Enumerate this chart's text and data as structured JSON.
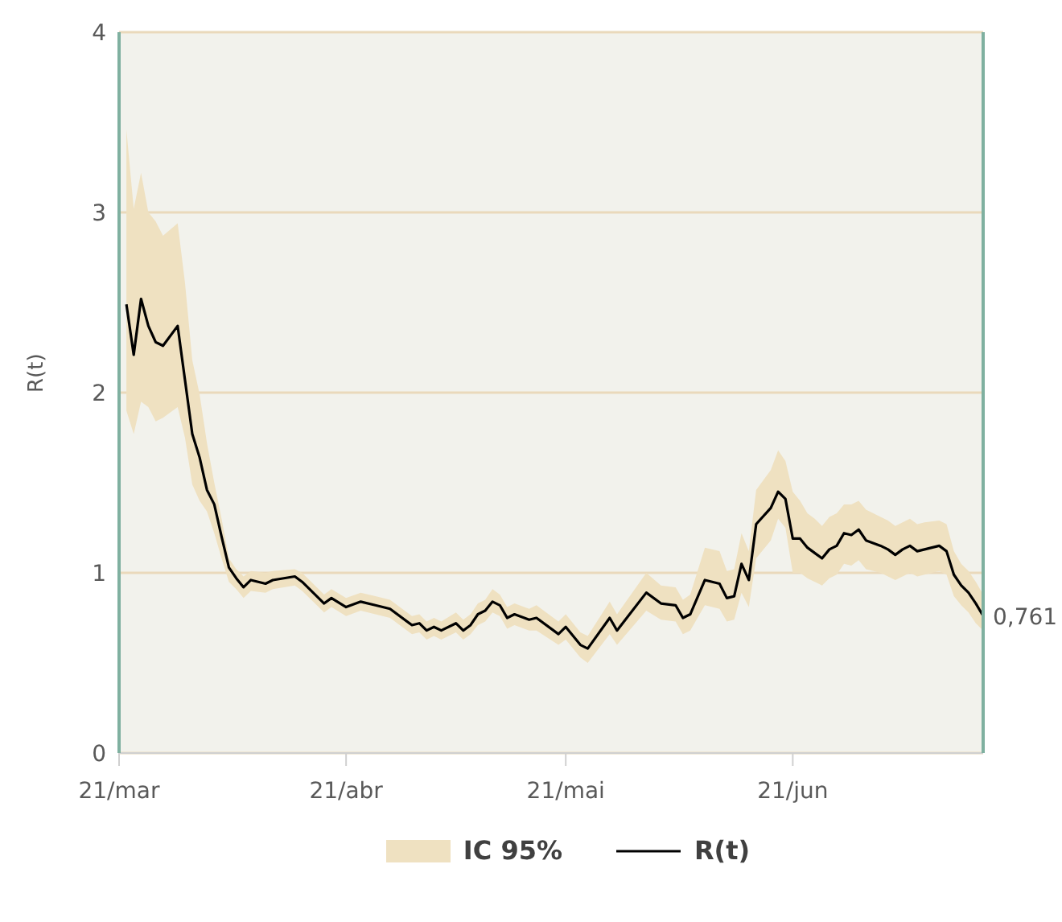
{
  "chart_data": {
    "type": "line",
    "ylabel": "R(t)",
    "x": [
      "--03-22",
      "--03-23",
      "--03-24",
      "--03-25",
      "--03-26",
      "--03-27",
      "--03-29",
      "--03-30",
      "--03-31",
      "--04-01",
      "--04-02",
      "--04-03",
      "--04-04",
      "--04-05",
      "--04-06",
      "--04-07",
      "--04-08",
      "--04-10",
      "--04-11",
      "--04-14",
      "--04-15",
      "--04-17",
      "--04-18",
      "--04-19",
      "--04-21",
      "--04-23",
      "--04-25",
      "--04-27",
      "--04-30",
      "--05-01",
      "--05-02",
      "--05-03",
      "--05-04",
      "--05-06",
      "--05-07",
      "--05-08",
      "--05-09",
      "--05-10",
      "--05-11",
      "--05-12",
      "--05-13",
      "--05-14",
      "--05-16",
      "--05-17",
      "--05-20",
      "--05-21",
      "--05-23",
      "--05-24",
      "--05-27",
      "--05-28",
      "--06-01",
      "--06-03",
      "--06-05",
      "--06-06",
      "--06-07",
      "--06-09",
      "--06-11",
      "--06-12",
      "--06-13",
      "--06-14",
      "--06-15",
      "--06-16",
      "--06-18",
      "--06-19",
      "--06-20",
      "--06-21",
      "--06-22",
      "--06-23",
      "--06-24",
      "--06-25",
      "--06-26",
      "--06-27",
      "--06-28",
      "--06-29",
      "--06-30",
      "--07-01",
      "--07-03",
      "--07-04",
      "--07-05",
      "--07-06",
      "--07-07",
      "--07-08",
      "--07-09",
      "--07-11",
      "--07-12",
      "--07-13",
      "--07-14",
      "--07-15",
      "--07-16",
      "--07-17"
    ],
    "series": [
      {
        "name": "R(t)",
        "color": "#000000",
        "lower": [
          1.9,
          1.77,
          1.95,
          1.92,
          1.84,
          1.86,
          1.92,
          1.75,
          1.49,
          1.4,
          1.34,
          1.22,
          1.08,
          0.95,
          0.91,
          0.86,
          0.9,
          0.89,
          0.91,
          0.93,
          0.9,
          0.82,
          0.78,
          0.81,
          0.76,
          0.79,
          0.77,
          0.75,
          0.66,
          0.67,
          0.63,
          0.65,
          0.63,
          0.67,
          0.63,
          0.66,
          0.71,
          0.73,
          0.78,
          0.76,
          0.69,
          0.71,
          0.68,
          0.68,
          0.6,
          0.63,
          0.53,
          0.5,
          0.66,
          0.6,
          0.79,
          0.74,
          0.73,
          0.66,
          0.68,
          0.82,
          0.8,
          0.73,
          0.74,
          0.89,
          0.81,
          1.08,
          1.18,
          1.3,
          1.25,
          1.0,
          1.0,
          0.97,
          0.95,
          0.93,
          0.97,
          0.99,
          1.05,
          1.04,
          1.07,
          1.02,
          1.0,
          0.98,
          0.96,
          0.98,
          1.0,
          0.98,
          0.99,
          1.01,
          0.99,
          0.87,
          0.82,
          0.78,
          0.72,
          0.68
        ],
        "upper": [
          3.46,
          3.02,
          3.22,
          3.0,
          2.95,
          2.87,
          2.94,
          2.61,
          2.18,
          1.99,
          1.72,
          1.5,
          1.3,
          1.08,
          1.02,
          0.98,
          1.01,
          1.0,
          1.01,
          1.02,
          1.0,
          0.92,
          0.88,
          0.91,
          0.86,
          0.89,
          0.87,
          0.85,
          0.76,
          0.77,
          0.73,
          0.75,
          0.73,
          0.78,
          0.74,
          0.77,
          0.83,
          0.85,
          0.91,
          0.88,
          0.81,
          0.83,
          0.8,
          0.82,
          0.73,
          0.77,
          0.67,
          0.65,
          0.84,
          0.77,
          1.0,
          0.93,
          0.92,
          0.85,
          0.88,
          1.14,
          1.12,
          1.01,
          1.02,
          1.22,
          1.12,
          1.46,
          1.57,
          1.68,
          1.62,
          1.45,
          1.4,
          1.33,
          1.3,
          1.26,
          1.31,
          1.33,
          1.38,
          1.38,
          1.4,
          1.35,
          1.31,
          1.29,
          1.26,
          1.28,
          1.3,
          1.27,
          1.28,
          1.29,
          1.27,
          1.12,
          1.05,
          1.01,
          0.95,
          0.88
        ],
        "values": [
          2.49,
          2.21,
          2.52,
          2.37,
          2.28,
          2.26,
          2.37,
          2.07,
          1.77,
          1.64,
          1.46,
          1.38,
          1.2,
          1.03,
          0.97,
          0.92,
          0.96,
          0.94,
          0.96,
          0.98,
          0.95,
          0.87,
          0.83,
          0.86,
          0.81,
          0.84,
          0.82,
          0.8,
          0.71,
          0.72,
          0.68,
          0.7,
          0.68,
          0.72,
          0.68,
          0.71,
          0.77,
          0.79,
          0.84,
          0.82,
          0.75,
          0.77,
          0.74,
          0.75,
          0.66,
          0.7,
          0.6,
          0.58,
          0.75,
          0.68,
          0.89,
          0.83,
          0.82,
          0.75,
          0.77,
          0.96,
          0.94,
          0.86,
          0.87,
          1.05,
          0.96,
          1.27,
          1.36,
          1.45,
          1.41,
          1.19,
          1.19,
          1.14,
          1.11,
          1.08,
          1.13,
          1.15,
          1.22,
          1.21,
          1.24,
          1.18,
          1.15,
          1.13,
          1.1,
          1.13,
          1.15,
          1.12,
          1.13,
          1.15,
          1.12,
          0.99,
          0.93,
          0.89,
          0.83,
          0.761
        ],
        "value_labels": [
          null,
          null,
          null,
          null,
          null,
          null,
          null,
          null,
          null,
          null,
          null,
          null,
          null,
          null,
          null,
          null,
          null,
          null,
          null,
          null,
          null,
          null,
          null,
          null,
          null,
          null,
          null,
          null,
          null,
          null,
          null,
          null,
          null,
          null,
          null,
          null,
          null,
          null,
          null,
          null,
          null,
          null,
          null,
          null,
          null,
          null,
          null,
          null,
          null,
          null,
          null,
          null,
          null,
          null,
          null,
          null,
          null,
          null,
          null,
          null,
          null,
          null,
          null,
          null,
          null,
          null,
          null,
          null,
          null,
          null,
          null,
          null,
          null,
          null,
          null,
          null,
          null,
          null,
          null,
          null,
          null,
          null,
          null,
          null,
          null,
          null,
          null,
          null,
          null,
          "0,761"
        ]
      }
    ],
    "xlim": [
      "--03-21",
      "--07-17"
    ],
    "xticks": [
      {
        "value": "--03-21",
        "label": "21/mar"
      },
      {
        "value": "--04-21",
        "label": "21/abr"
      },
      {
        "value": "--05-21",
        "label": "21/mai"
      },
      {
        "value": "--06-21",
        "label": "21/jun"
      }
    ],
    "ylim": [
      0,
      4
    ],
    "yticks": [
      0,
      1,
      2,
      3,
      4
    ],
    "annotations": [
      "IC 95%"
    ],
    "grid": "y",
    "legend": "bottom",
    "marker": "none",
    "line_style": "solid"
  }
}
